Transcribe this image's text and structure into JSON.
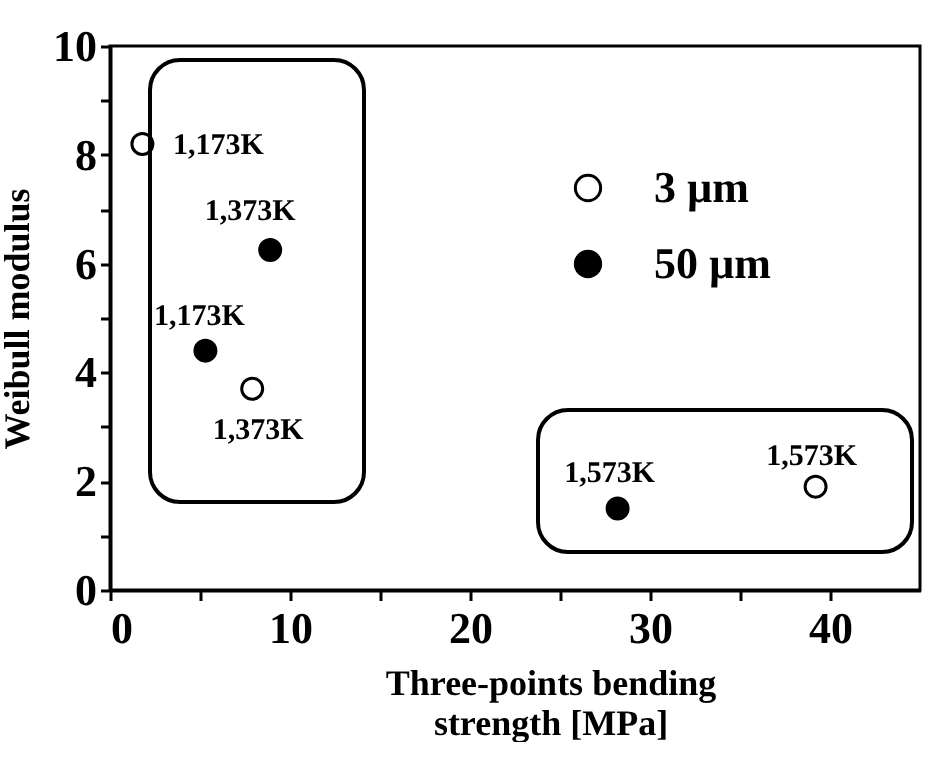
{
  "chart_data": {
    "type": "scatter",
    "xlabel": "Three-points bending strength [MPa]",
    "ylabel": "Weibull modulus",
    "xlim": [
      0,
      45
    ],
    "xticks": [
      0,
      {
        "value": 5,
        "label": null
      },
      10,
      {
        "value": 15,
        "label": null
      },
      20,
      {
        "value": 25,
        "label": null
      },
      30,
      {
        "value": 35,
        "label": null
      },
      40
    ],
    "ylim": [
      0,
      10
    ],
    "yticks": [
      0,
      {
        "value": 1,
        "label": null
      },
      2,
      {
        "value": 3,
        "label": null
      },
      4,
      {
        "value": 5,
        "label": null
      },
      6,
      {
        "value": 7,
        "label": null
      },
      8,
      {
        "value": 9,
        "label": null
      },
      10
    ],
    "series": [
      {
        "name": "3 µm",
        "color": "#ffffff",
        "x": [
          1.8,
          7.9,
          39.2
        ],
        "values": [
          8.2,
          3.7,
          1.9
        ]
      },
      {
        "name": "50 µm",
        "color": "#000000",
        "x": [
          5.3,
          8.9,
          28.2
        ],
        "values": [
          4.4,
          6.25,
          1.5
        ]
      }
    ],
    "annotations": [
      {
        "text": "1,173K",
        "x": 1.8,
        "y": 8.2
      },
      {
        "text": "1,373K",
        "x": 8.9,
        "y": 6.25
      },
      {
        "text": "1,173K",
        "x": 5.3,
        "y": 4.4
      },
      {
        "text": "1,373K",
        "x": 7.9,
        "y": 3.7
      },
      {
        "text": "1,573K",
        "x": 28.2,
        "y": 1.5
      },
      {
        "text": "1,573K",
        "x": 39.2,
        "y": 1.9
      }
    ],
    "marker": "circle",
    "legend": "top right",
    "grid": false
  }
}
